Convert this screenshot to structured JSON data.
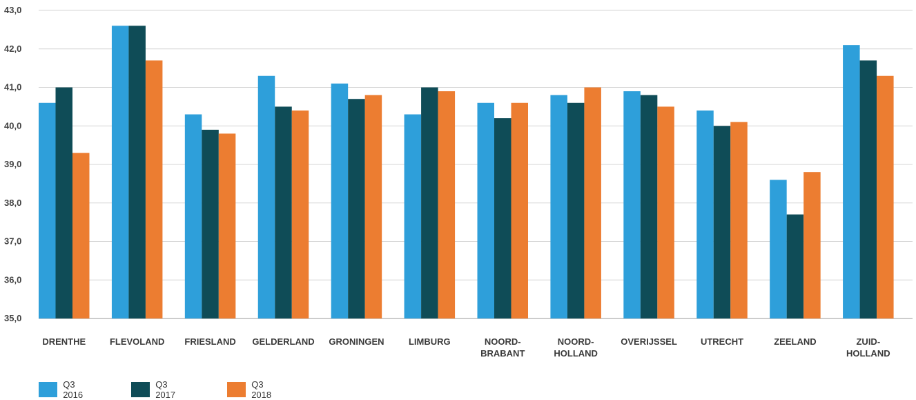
{
  "chart_data": {
    "type": "bar",
    "title": "",
    "xlabel": "",
    "ylabel": "",
    "ylim": [
      35,
      43
    ],
    "y_ticks": [
      "35,0",
      "36,0",
      "37,0",
      "38,0",
      "39,0",
      "40,0",
      "41,0",
      "42,0",
      "43,0"
    ],
    "grid": true,
    "legend_position": "bottom-left",
    "categories": [
      [
        "DRENTHE"
      ],
      [
        "FLEVOLAND"
      ],
      [
        "FRIESLAND"
      ],
      [
        "GELDERLAND"
      ],
      [
        "GRONINGEN"
      ],
      [
        "LIMBURG"
      ],
      [
        "NOORD-",
        "BRABANT"
      ],
      [
        "NOORD-",
        "HOLLAND"
      ],
      [
        "OVERIJSSEL"
      ],
      [
        "UTRECHT"
      ],
      [
        "ZEELAND"
      ],
      [
        "ZUID-",
        "HOLLAND"
      ]
    ],
    "series": [
      {
        "name": "Q3 2016",
        "color": "#2E9FDA",
        "values": [
          40.6,
          42.6,
          40.3,
          41.3,
          41.1,
          40.3,
          40.6,
          40.8,
          40.9,
          40.4,
          38.6,
          42.1
        ]
      },
      {
        "name": "Q3 2017",
        "color": "#0F4C57",
        "values": [
          41.0,
          42.6,
          39.9,
          40.5,
          40.7,
          41.0,
          40.2,
          40.6,
          40.8,
          40.0,
          37.7,
          41.7
        ]
      },
      {
        "name": "Q3 2018",
        "color": "#EC7D31",
        "values": [
          39.3,
          41.7,
          39.8,
          40.4,
          40.8,
          40.9,
          40.6,
          41.0,
          40.5,
          40.1,
          38.8,
          41.3
        ]
      }
    ]
  }
}
